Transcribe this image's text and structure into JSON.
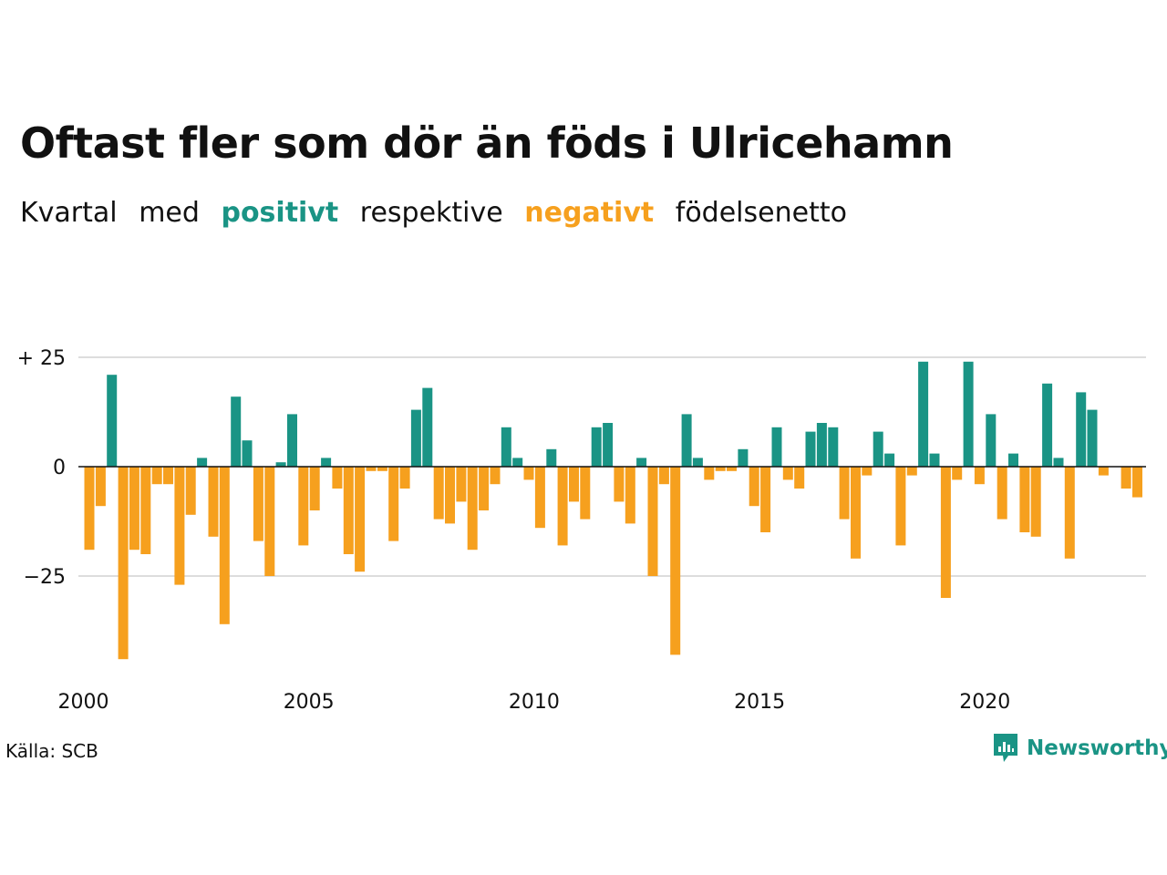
{
  "title": "Oftast fler som dör än föds i Ulricehamn",
  "subtitle": {
    "w1": "Kvartal",
    "w2": "med",
    "positive_word": "positivt",
    "w4": "respektive",
    "negative_word": "negativt",
    "w6": "födelsenetto"
  },
  "source": "Källa: SCB",
  "brand": "Newsworthy",
  "colors": {
    "positive": "#1a9485",
    "negative": "#f6a01e",
    "grid": "#dddddd"
  },
  "chart_data": {
    "type": "bar",
    "start_year": 2000,
    "quarters_per_year": 4,
    "ylim": [
      -45,
      25
    ],
    "yticks": [
      {
        "value": 25,
        "label": "+ 25"
      },
      {
        "value": 0,
        "label": "0"
      },
      {
        "value": -25,
        "label": "−25"
      }
    ],
    "xticks": [
      "2000",
      "2005",
      "2010",
      "2015",
      "2020"
    ],
    "values": [
      -19,
      -9,
      21,
      -44,
      -19,
      -20,
      -4,
      -4,
      -27,
      -11,
      2,
      -16,
      -36,
      16,
      6,
      -17,
      -25,
      1,
      12,
      -18,
      -10,
      2,
      -5,
      -20,
      -24,
      -1,
      -1,
      -17,
      -5,
      13,
      18,
      -12,
      -13,
      -8,
      -19,
      -10,
      -4,
      9,
      2,
      -3,
      -14,
      4,
      -18,
      -8,
      -12,
      9,
      10,
      -8,
      -13,
      2,
      -25,
      -4,
      -43,
      12,
      2,
      -3,
      -1,
      -1,
      4,
      -9,
      -15,
      9,
      -3,
      -5,
      8,
      10,
      9,
      -12,
      -21,
      -2,
      8,
      3,
      -18,
      -2,
      24,
      3,
      -30,
      -3,
      24,
      -4,
      12,
      -12,
      3,
      -15,
      -16,
      19,
      2,
      -21,
      17,
      13,
      -2,
      0,
      -5,
      -7
    ]
  }
}
